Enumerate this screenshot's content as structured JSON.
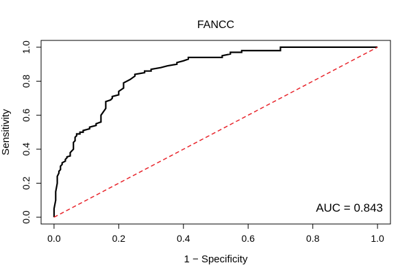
{
  "chart_data": {
    "type": "line",
    "title": "FANCC",
    "xlabel": "1 − Specificity",
    "ylabel": "Sensitivity",
    "xlim": [
      -0.04,
      1.04
    ],
    "ylim": [
      -0.04,
      1.04
    ],
    "xticks": [
      "0.0",
      "0.2",
      "0.4",
      "0.6",
      "0.8",
      "1.0"
    ],
    "yticks": [
      "0.0",
      "0.2",
      "0.4",
      "0.6",
      "0.8",
      "1.0"
    ],
    "grid": false,
    "annotation": "AUC = 0.843",
    "series": [
      {
        "style": "solid",
        "color": "#000000",
        "x": [
          0.0,
          0.0,
          0.005,
          0.005,
          0.01,
          0.01,
          0.015,
          0.015,
          0.02,
          0.02,
          0.025,
          0.025,
          0.035,
          0.035,
          0.04,
          0.04,
          0.05,
          0.05,
          0.06,
          0.06,
          0.065,
          0.065,
          0.07,
          0.07,
          0.08,
          0.08,
          0.09,
          0.09,
          0.11,
          0.11,
          0.13,
          0.13,
          0.145,
          0.145,
          0.16,
          0.16,
          0.175,
          0.175,
          0.18,
          0.18,
          0.2,
          0.2,
          0.215,
          0.215,
          0.235,
          0.235,
          0.25,
          0.25,
          0.28,
          0.28,
          0.3,
          0.3,
          0.33,
          0.33,
          0.35,
          0.35,
          0.38,
          0.38,
          0.4,
          0.4,
          0.415,
          0.415,
          0.43,
          0.43,
          0.52,
          0.52,
          0.545,
          0.545,
          0.58,
          0.58,
          0.7,
          0.7,
          1.0
        ],
        "y": [
          0.0,
          0.05,
          0.1,
          0.15,
          0.2,
          0.24,
          0.26,
          0.27,
          0.28,
          0.3,
          0.31,
          0.32,
          0.33,
          0.34,
          0.35,
          0.355,
          0.36,
          0.38,
          0.4,
          0.44,
          0.45,
          0.47,
          0.48,
          0.49,
          0.49,
          0.5,
          0.5,
          0.51,
          0.52,
          0.53,
          0.54,
          0.55,
          0.56,
          0.6,
          0.64,
          0.68,
          0.69,
          0.69,
          0.7,
          0.71,
          0.72,
          0.74,
          0.76,
          0.79,
          0.81,
          0.81,
          0.83,
          0.84,
          0.85,
          0.86,
          0.86,
          0.87,
          0.88,
          0.88,
          0.89,
          0.89,
          0.9,
          0.91,
          0.92,
          0.92,
          0.93,
          0.94,
          0.94,
          0.94,
          0.94,
          0.95,
          0.96,
          0.97,
          0.97,
          0.98,
          0.98,
          1.0,
          1.0
        ]
      },
      {
        "style": "dashed",
        "color": "#e8232a",
        "x": [
          0.0,
          1.0
        ],
        "y": [
          0.0,
          1.0
        ]
      }
    ]
  }
}
